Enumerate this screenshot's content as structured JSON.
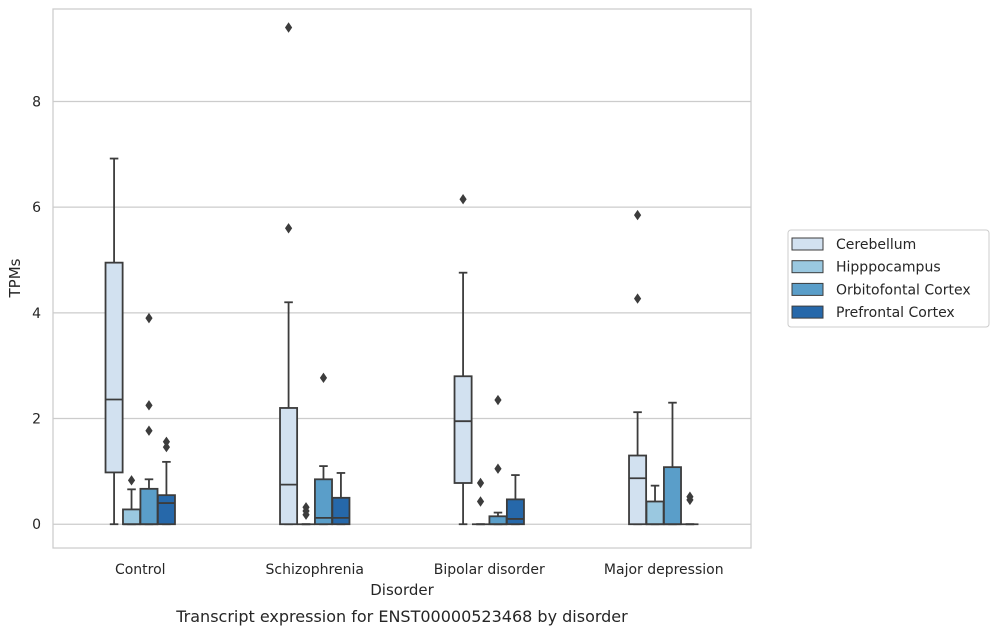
{
  "chart_data": {
    "type": "box",
    "title": "",
    "caption": "Transcript expression for ENST00000523468 by disorder",
    "xlabel": "Disorder",
    "ylabel": "TPMs",
    "ylim": [
      -0.45,
      9.75
    ],
    "yticks": [
      0,
      2,
      4,
      6,
      8
    ],
    "grid": "horizontal",
    "legend_position": "right",
    "categories": [
      "Control",
      "Schizophrenia",
      "Bipolar disorder",
      "Major depression"
    ],
    "series": [
      {
        "name": "Cerebellum",
        "color": "#d2e1f0",
        "boxes": [
          {
            "whisker_low": 0,
            "q1": 0.98,
            "median": 2.36,
            "q3": 4.95,
            "whisker_high": 6.92,
            "outliers": []
          },
          {
            "whisker_low": 0,
            "q1": 0,
            "median": 0.75,
            "q3": 2.2,
            "whisker_high": 4.2,
            "outliers": [
              5.6,
              9.4
            ]
          },
          {
            "whisker_low": 0,
            "q1": 0.78,
            "median": 1.95,
            "q3": 2.8,
            "whisker_high": 4.76,
            "outliers": [
              6.15
            ]
          },
          {
            "whisker_low": 0,
            "q1": 0,
            "median": 0.87,
            "q3": 1.3,
            "whisker_high": 2.12,
            "outliers": [
              4.27,
              5.85
            ]
          }
        ]
      },
      {
        "name": "Hipppocampus",
        "color": "#9ac8e0",
        "boxes": [
          {
            "whisker_low": 0,
            "q1": 0,
            "median": 0,
            "q3": 0.28,
            "whisker_high": 0.66,
            "outliers": [
              0.83
            ]
          },
          {
            "whisker_low": 0,
            "q1": 0,
            "median": 0,
            "q3": 0,
            "whisker_high": 0,
            "outliers": [
              0.18,
              0.25,
              0.32
            ]
          },
          {
            "whisker_low": 0,
            "q1": 0,
            "median": 0,
            "q3": 0,
            "whisker_high": 0,
            "outliers": [
              0.43,
              0.78
            ]
          },
          {
            "whisker_low": 0,
            "q1": 0,
            "median": 0,
            "q3": 0.43,
            "whisker_high": 0.73,
            "outliers": []
          }
        ]
      },
      {
        "name": "Orbitofontal Cortex",
        "color": "#5a9ec9",
        "boxes": [
          {
            "whisker_low": 0,
            "q1": 0,
            "median": 0,
            "q3": 0.67,
            "whisker_high": 0.85,
            "outliers": [
              1.77,
              2.25,
              3.9
            ]
          },
          {
            "whisker_low": 0,
            "q1": 0,
            "median": 0.12,
            "q3": 0.85,
            "whisker_high": 1.1,
            "outliers": [
              2.77
            ]
          },
          {
            "whisker_low": 0,
            "q1": 0,
            "median": 0,
            "q3": 0.15,
            "whisker_high": 0.22,
            "outliers": [
              1.05,
              2.35
            ]
          },
          {
            "whisker_low": 0,
            "q1": 0,
            "median": 0,
            "q3": 1.08,
            "whisker_high": 2.3,
            "outliers": []
          }
        ]
      },
      {
        "name": "Prefrontal Cortex",
        "color": "#2668aa",
        "boxes": [
          {
            "whisker_low": 0,
            "q1": 0,
            "median": 0.4,
            "q3": 0.55,
            "whisker_high": 1.18,
            "outliers": [
              1.46,
              1.56
            ]
          },
          {
            "whisker_low": 0,
            "q1": 0,
            "median": 0.12,
            "q3": 0.5,
            "whisker_high": 0.97,
            "outliers": []
          },
          {
            "whisker_low": 0,
            "q1": 0,
            "median": 0.1,
            "q3": 0.47,
            "whisker_high": 0.93,
            "outliers": []
          },
          {
            "whisker_low": 0,
            "q1": 0,
            "median": 0,
            "q3": 0,
            "whisker_high": 0,
            "outliers": [
              0.46,
              0.52
            ]
          }
        ]
      }
    ]
  }
}
